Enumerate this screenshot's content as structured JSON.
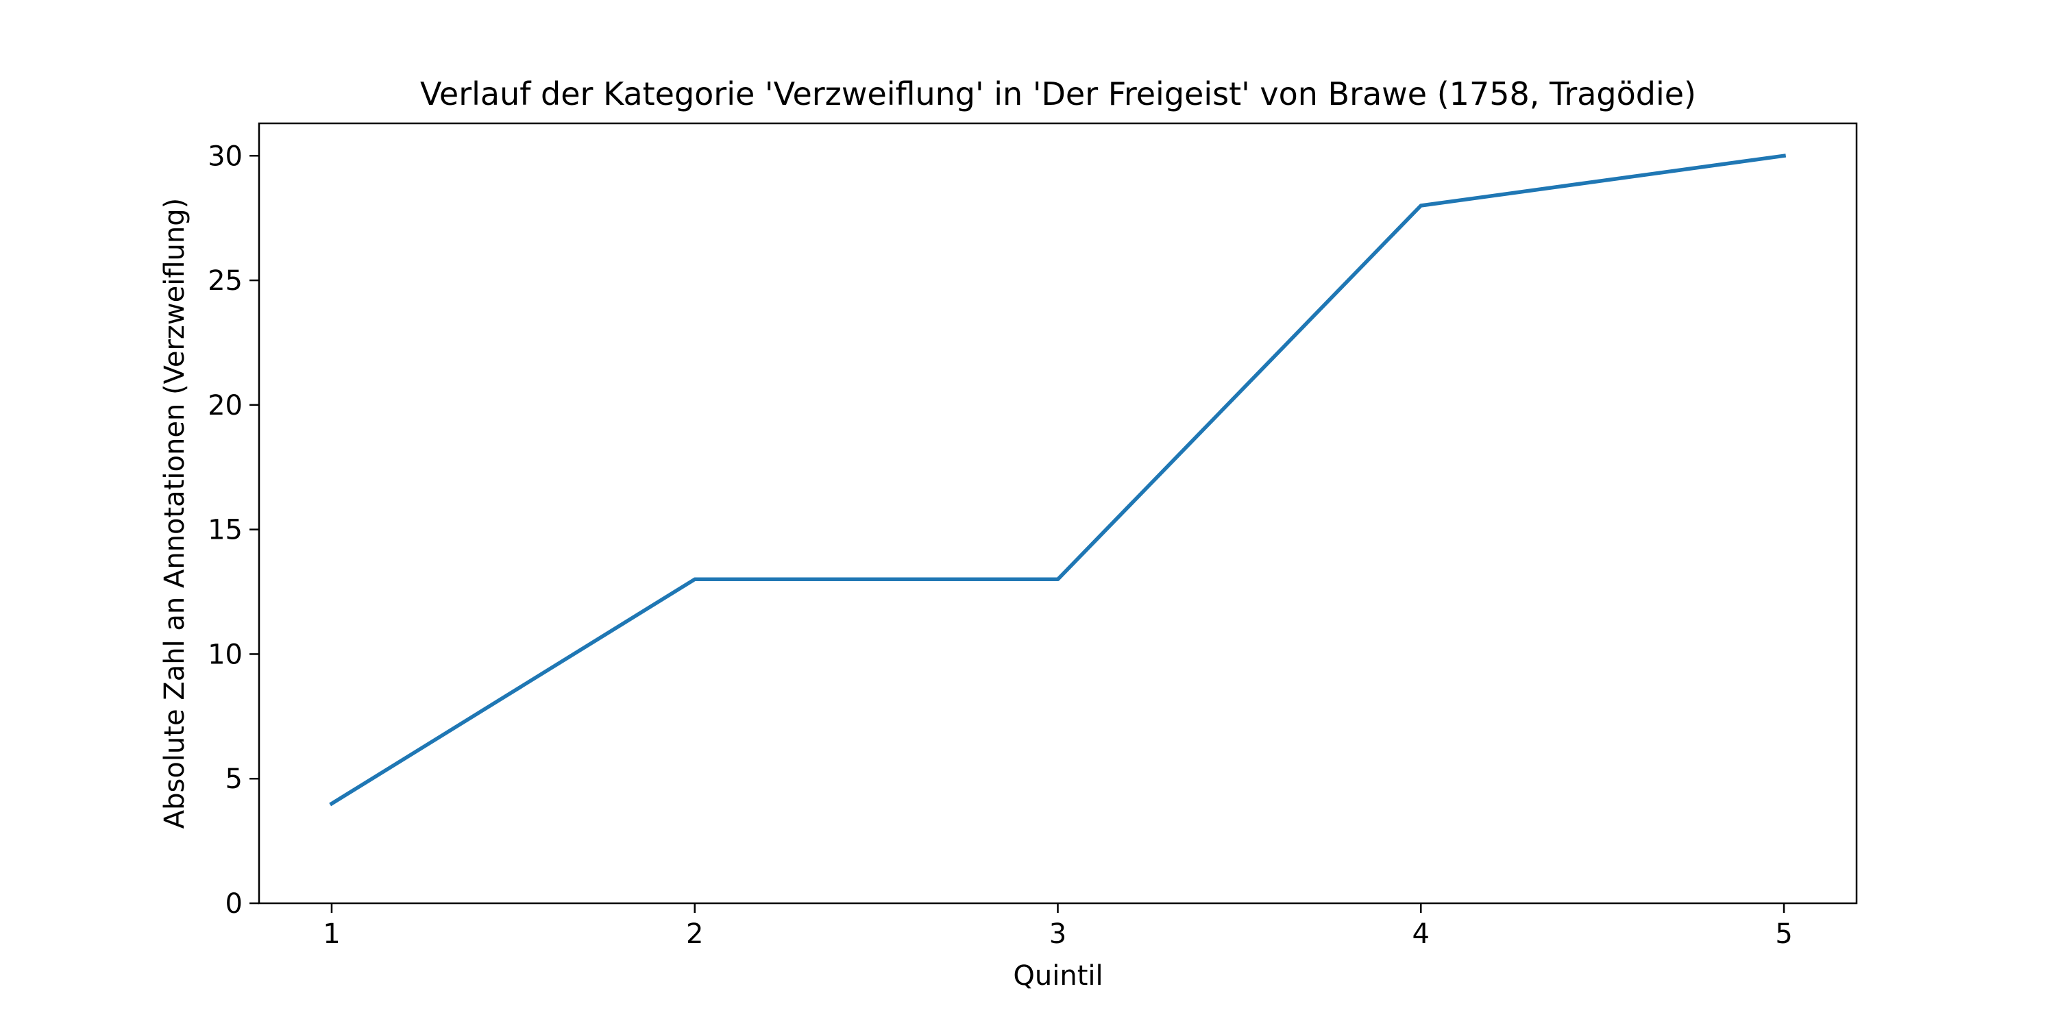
{
  "chart_data": {
    "type": "line",
    "title": "Verlauf der Kategorie 'Verzweiflung' in 'Der Freigeist' von Brawe (1758, Tragödie)",
    "xlabel": "Quintil",
    "ylabel": "Absolute Zahl an Annotationen (Verzweiflung)",
    "x": [
      1,
      2,
      3,
      4,
      5
    ],
    "series": [
      {
        "values": [
          4,
          13,
          13,
          28,
          30
        ],
        "color": "#1f77b4"
      }
    ],
    "xlim": [
      0.8,
      5.2
    ],
    "ylim": [
      0,
      31.3
    ],
    "xticks": [
      1,
      2,
      3,
      4,
      5
    ],
    "yticks": [
      0,
      5,
      10,
      15,
      20,
      25,
      30
    ],
    "grid": false,
    "legend": "none"
  }
}
